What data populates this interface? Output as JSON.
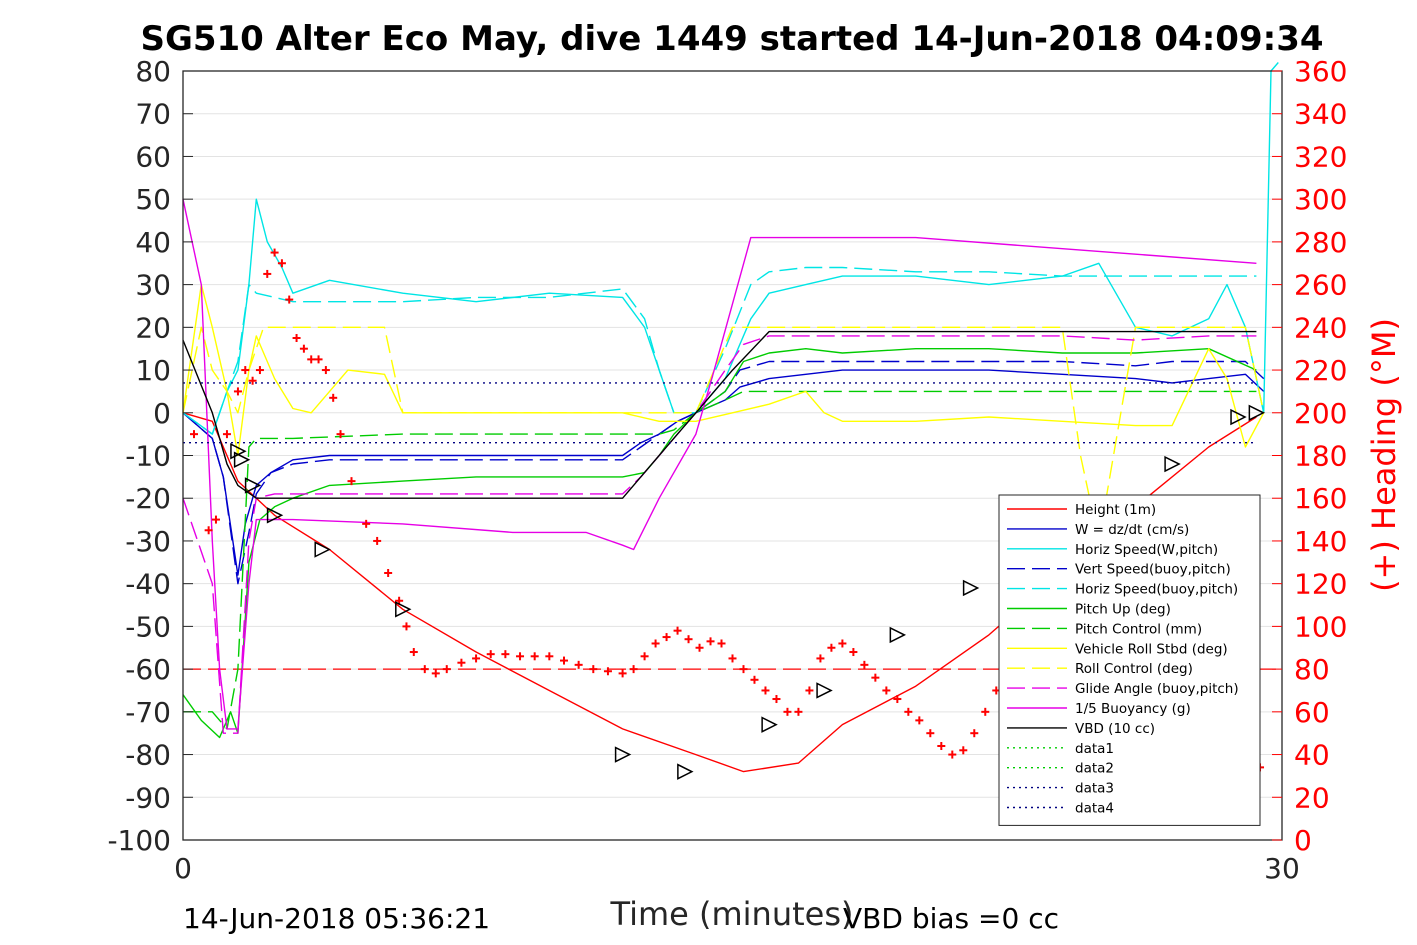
{
  "chart_data": {
    "type": "line",
    "title": "SG510 Alter Eco May, dive 1449 started 14-Jun-2018 04:09:34",
    "xlabel": "Time (minutes)",
    "ylabel": "",
    "y2label": "(+) Heading (°M)",
    "xlim": [
      0,
      30
    ],
    "ylim": [
      -100,
      80
    ],
    "y2lim": [
      0,
      360
    ],
    "xticks": [
      "0",
      "30"
    ],
    "yticks": [
      "80",
      "70",
      "60",
      "50",
      "40",
      "30",
      "20",
      "10",
      "0",
      "-10",
      "-20",
      "-30",
      "-40",
      "-50",
      "-60",
      "-70",
      "-80",
      "-90",
      "-100"
    ],
    "y2ticks": [
      "360",
      "340",
      "320",
      "300",
      "280",
      "260",
      "240",
      "220",
      "200",
      "180",
      "160",
      "140",
      "120",
      "100",
      "80",
      "60",
      "40",
      "20",
      "0"
    ],
    "grid": true,
    "legend_position": "bottom-right",
    "footer_left": "14-Jun-2018 05:36:21",
    "footer_right": "VBD bias =0 cc",
    "series": [
      {
        "name": "Height (1m)",
        "color": "#ff0000",
        "style": "solid",
        "x": [
          0,
          0.8,
          1.5,
          2.5,
          4,
          6,
          8,
          10,
          12,
          14,
          15.3,
          16.8,
          18,
          20,
          22,
          24,
          26,
          28,
          29.3
        ],
        "y": [
          0,
          -2,
          -16,
          -24,
          -32,
          -46,
          -56,
          -65,
          -74,
          -80,
          -84,
          -82,
          -73,
          -64,
          -52,
          -37,
          -22,
          -8,
          -1
        ]
      },
      {
        "name": "W = dz/dt (cm/s)",
        "color": "#0000cc",
        "style": "solid",
        "x": [
          0,
          0.8,
          1.1,
          1.5,
          1.7,
          2.0,
          2.4,
          3,
          4,
          6,
          8,
          10,
          12,
          12.5,
          13,
          13.5,
          14,
          14.8,
          15.2,
          16,
          17,
          18,
          20,
          22,
          24,
          26,
          27,
          28,
          29,
          29.5
        ],
        "y": [
          0,
          -6,
          -15,
          -38,
          -26,
          -17,
          -14,
          -11,
          -10,
          -10,
          -10,
          -10,
          -10,
          -7,
          -5,
          -2,
          0,
          3,
          6,
          8,
          9,
          10,
          10,
          10,
          9,
          8,
          7,
          8,
          9,
          5
        ]
      },
      {
        "name": "Horiz Speed(W,pitch)",
        "color": "#00e5e5",
        "style": "solid",
        "x": [
          0,
          0.8,
          1.2,
          1.5,
          1.8,
          2.0,
          2.3,
          2.7,
          3,
          4,
          6,
          8,
          10,
          12,
          12.6,
          13,
          13.4,
          14,
          14.8,
          15.5,
          16,
          17,
          18,
          20,
          22,
          24,
          25,
          26,
          27,
          28,
          28.5,
          29,
          29.5,
          29.7,
          29.9
        ],
        "y": [
          0,
          -5,
          5,
          10,
          30,
          50,
          40,
          34,
          28,
          31,
          28,
          26,
          28,
          27,
          20,
          10,
          0,
          0,
          8,
          22,
          28,
          30,
          32,
          32,
          30,
          32,
          35,
          20,
          18,
          22,
          30,
          20,
          0,
          80,
          82
        ]
      },
      {
        "name": "Vert Speed(buoy,pitch)",
        "color": "#0000cc",
        "style": "dash",
        "x": [
          0,
          0.8,
          1.1,
          1.5,
          1.8,
          2.0,
          2.4,
          3,
          4,
          6,
          8,
          10,
          12,
          12.5,
          13,
          13.5,
          14,
          14.8,
          15.2,
          16,
          17,
          18,
          20,
          22,
          24,
          26,
          27,
          28,
          29,
          29.5
        ],
        "y": [
          0,
          -6,
          -15,
          -40,
          -28,
          -19,
          -14,
          -12,
          -11,
          -11,
          -11,
          -11,
          -11,
          -8,
          -5,
          -2,
          0,
          5,
          10,
          12,
          12,
          12,
          12,
          12,
          12,
          11,
          12,
          12,
          12,
          8
        ]
      },
      {
        "name": "Horiz Speed(buoy,pitch)",
        "color": "#00e5e5",
        "style": "dash",
        "x": [
          0,
          0.8,
          1.2,
          1.5,
          1.8,
          2.0,
          2.5,
          3,
          4,
          6,
          8,
          10,
          12,
          12.6,
          13,
          13.4,
          14,
          14.8,
          15.5,
          16,
          17,
          18,
          20,
          22,
          24,
          26,
          28,
          29.3
        ],
        "y": [
          0,
          -5,
          5,
          12,
          30,
          28,
          27,
          26,
          26,
          26,
          27,
          27,
          29,
          22,
          10,
          0,
          0,
          15,
          30,
          33,
          34,
          34,
          33,
          33,
          32,
          32,
          32,
          32
        ]
      },
      {
        "name": "Pitch Up (deg)",
        "color": "#00cc00",
        "style": "solid",
        "x": [
          0,
          0.5,
          1,
          1.3,
          1.5,
          1.8,
          2.1,
          2.5,
          3,
          4,
          6,
          8,
          10,
          12,
          12.6,
          13,
          13.4,
          14,
          14.8,
          15.3,
          16,
          17,
          18,
          20,
          22,
          24,
          26,
          28,
          29.3
        ],
        "y": [
          -66,
          -72,
          -76,
          -70,
          -75,
          -35,
          -25,
          -22,
          -20,
          -17,
          -16,
          -15,
          -15,
          -15,
          -14,
          -10,
          -5,
          0,
          5,
          12,
          14,
          15,
          14,
          15,
          15,
          14,
          14,
          15,
          10
        ]
      },
      {
        "name": "Pitch Control (mm)",
        "color": "#00cc00",
        "style": "dash",
        "x": [
          0,
          0.8,
          1.2,
          1.5,
          1.8,
          2.0,
          2.5,
          3,
          6,
          10,
          13,
          13.4,
          14,
          14.8,
          15.3,
          16,
          20,
          25,
          29.3
        ],
        "y": [
          -70,
          -70,
          -74,
          -60,
          -8,
          -6,
          -6,
          -6,
          -5,
          -5,
          -5,
          -4,
          0,
          3,
          5,
          5,
          5,
          5,
          5
        ]
      },
      {
        "name": "Vehicle Roll Stbd (deg)",
        "color": "#ffff00",
        "style": "solid",
        "x": [
          0,
          0.5,
          0.8,
          1.2,
          1.5,
          1.8,
          2.0,
          2.5,
          3,
          3.5,
          4.5,
          5.5,
          6,
          8,
          10,
          12,
          13,
          14,
          15,
          16,
          17,
          17.5,
          18,
          20,
          22,
          24,
          26,
          27,
          28,
          28.5,
          29,
          29.5
        ],
        "y": [
          0,
          30,
          20,
          5,
          -10,
          10,
          18,
          8,
          1,
          0,
          10,
          9,
          0,
          0,
          0,
          0,
          -2,
          -2,
          0,
          2,
          5,
          0,
          -2,
          -2,
          -1,
          -2,
          -3,
          -3,
          15,
          8,
          -8,
          0
        ]
      },
      {
        "name": "Roll Control (deg)",
        "color": "#ffff00",
        "style": "dash",
        "x": [
          0,
          0.5,
          0.8,
          1.2,
          1.5,
          1.8,
          2.2,
          2.5,
          3,
          3.5,
          4,
          5.5,
          6,
          8,
          10,
          12,
          13,
          14,
          15,
          16,
          17,
          17.5,
          18,
          20,
          22,
          24,
          24.5,
          25,
          25.5,
          26,
          27,
          28,
          28.5,
          29,
          29.5
        ],
        "y": [
          0,
          20,
          10,
          5,
          0,
          10,
          20,
          20,
          20,
          20,
          20,
          20,
          0,
          0,
          0,
          0,
          0,
          0,
          20,
          20,
          20,
          20,
          20,
          20,
          20,
          20,
          -10,
          -30,
          -5,
          20,
          20,
          20,
          20,
          20,
          0
        ]
      },
      {
        "name": "Glide Angle (buoy,pitch)",
        "color": "#e600e6",
        "style": "dash",
        "x": [
          0,
          0.8,
          1.1,
          1.5,
          1.8,
          2.0,
          2.5,
          3,
          4,
          6,
          8,
          10,
          12,
          12.5,
          13,
          13.5,
          14,
          14.8,
          15.3,
          16,
          17,
          18,
          20,
          22,
          24,
          26,
          28,
          29.3
        ],
        "y": [
          -20,
          -40,
          -75,
          -75,
          -30,
          -20,
          -19,
          -19,
          -19,
          -19,
          -19,
          -19,
          -19,
          -15,
          -10,
          -5,
          0,
          10,
          16,
          18,
          18,
          18,
          18,
          18,
          18,
          17,
          18,
          18
        ]
      },
      {
        "name": "1/5 Buoyancy (g)",
        "color": "#e600e6",
        "style": "solid",
        "x": [
          0,
          0.5,
          0.8,
          1.0,
          1.2,
          1.5,
          1.8,
          2.0,
          3,
          6,
          9,
          11,
          12,
          12.3,
          13,
          14,
          14.5,
          15.5,
          16,
          20,
          29.3
        ],
        "y": [
          50,
          30,
          -30,
          -60,
          -74,
          -74,
          -40,
          -25,
          -25,
          -26,
          -28,
          -28,
          -31,
          -32,
          -20,
          -5,
          10,
          41,
          41,
          41,
          35
        ]
      },
      {
        "name": "VBD (10 cc)",
        "color": "#000000",
        "style": "solid",
        "x": [
          0,
          0.8,
          1.2,
          1.5,
          2.0,
          4,
          8,
          12,
          13.5,
          14,
          15,
          16,
          20,
          25,
          29.3
        ],
        "y": [
          17,
          0,
          -12,
          -17,
          -20,
          -20,
          -20,
          -20,
          -5,
          0,
          10,
          19,
          19,
          19,
          19
        ]
      },
      {
        "name": "data1",
        "color": "#00cc00",
        "style": "dot",
        "x": [],
        "y": []
      },
      {
        "name": "data2",
        "color": "#00cc00",
        "style": "dot",
        "x": [],
        "y": []
      },
      {
        "name": "data3",
        "color": "#000080",
        "style": "dot",
        "x": [
          0,
          29.3
        ],
        "y": [
          7,
          7
        ]
      },
      {
        "name": "data4",
        "color": "#000080",
        "style": "dot",
        "x": [
          0,
          29.3
        ],
        "y": [
          -7,
          -7
        ]
      }
    ],
    "reference_lines": [
      {
        "color": "#ff0000",
        "style": "dash",
        "axis": "y2",
        "value": 80
      }
    ],
    "heading": {
      "color": "#ff0000",
      "marker": "+",
      "axis": "y2",
      "x": [
        0.3,
        0.7,
        0.9,
        1.2,
        1.5,
        1.7,
        1.9,
        2.1,
        2.3,
        2.5,
        2.7,
        2.9,
        3.1,
        3.3,
        3.5,
        3.7,
        3.9,
        4.1,
        4.3,
        4.6,
        5.0,
        5.3,
        5.6,
        5.9,
        6.1,
        6.3,
        6.6,
        6.9,
        7.2,
        7.6,
        8,
        8.4,
        8.8,
        9.2,
        9.6,
        10,
        10.4,
        10.8,
        11.2,
        11.6,
        12,
        12.3,
        12.6,
        12.9,
        13.2,
        13.5,
        13.8,
        14.1,
        14.4,
        14.7,
        15,
        15.3,
        15.6,
        15.9,
        16.2,
        16.5,
        16.8,
        17.1,
        17.4,
        17.7,
        18,
        18.3,
        18.6,
        18.9,
        19.2,
        19.5,
        19.8,
        20.1,
        20.4,
        20.7,
        21,
        21.3,
        21.6,
        21.9,
        22.2,
        22.5,
        22.8,
        23.1,
        23.4,
        23.7,
        24,
        24.3,
        24.6,
        24.9,
        25.2,
        25.5,
        25.8,
        26.1,
        26.4,
        26.7,
        27,
        27.3,
        27.6,
        27.9,
        28.2,
        28.5,
        28.8,
        29.1,
        29.4
      ],
      "y": [
        190,
        145,
        150,
        190,
        210,
        220,
        215,
        220,
        265,
        275,
        270,
        253,
        235,
        230,
        225,
        225,
        220,
        207,
        190,
        168,
        148,
        140,
        125,
        112,
        100,
        88,
        80,
        78,
        80,
        83,
        85,
        87,
        87,
        86,
        86,
        86,
        84,
        82,
        80,
        79,
        78,
        80,
        86,
        92,
        95,
        98,
        94,
        90,
        93,
        92,
        85,
        80,
        75,
        70,
        66,
        60,
        60,
        70,
        85,
        90,
        92,
        88,
        82,
        76,
        70,
        66,
        60,
        56,
        50,
        44,
        40,
        42,
        50,
        60,
        70,
        80,
        90,
        96,
        98,
        95,
        90,
        85,
        80,
        75,
        70,
        66,
        62,
        58,
        55,
        52,
        50,
        48,
        46,
        44,
        42,
        40,
        38,
        36,
        34
      ]
    },
    "triangles": {
      "x": [
        1.5,
        1.6,
        1.9,
        2.5,
        3.8,
        6.0,
        12.0,
        13.7,
        16.0,
        17.5,
        19.5,
        21.5,
        27.0,
        28.8,
        29.3
      ],
      "y": [
        -9,
        -11,
        -17,
        -24,
        -32,
        -46,
        -80,
        -84,
        -73,
        -65,
        -52,
        -41,
        -12,
        -1,
        0
      ]
    }
  }
}
